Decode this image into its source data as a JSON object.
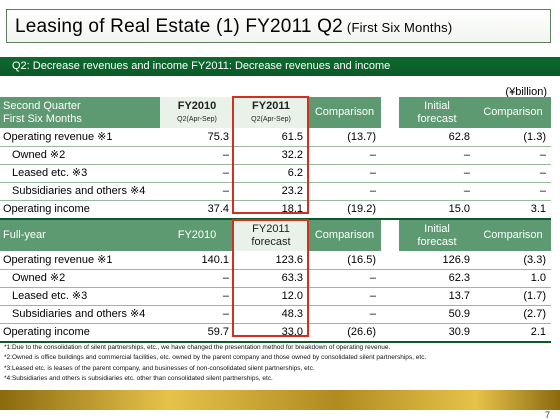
{
  "title": {
    "main": "Leasing of Real Estate (1) FY2011 Q2",
    "sub": "(First Six Months)"
  },
  "subheading": "Q2: Decrease revenues and income  FY2011: Decrease revenues and income",
  "unit": "(¥billion)",
  "q2": {
    "header": {
      "label_line1": "Second Quarter",
      "label_line2": "First Six Months",
      "fy2010": "FY2010",
      "fy2010_period": "Q2(Apr-Sep)",
      "fy2011": "FY2011",
      "fy2011_period": "Q2(Apr-Sep)",
      "comparison": "Comparison",
      "initial_line1": "Initial",
      "initial_line2": "forecast",
      "comparison2": "Comparison"
    },
    "rows": [
      {
        "label": "Operating revenue ※1",
        "fy2010": "75.3",
        "fy2011": "61.5",
        "comparison": "(13.7)",
        "initial": "62.8",
        "comparison2": "(1.3)"
      },
      {
        "label": "Owned ※2",
        "fy2010": "–",
        "fy2011": "32.2",
        "comparison": "–",
        "initial": "–",
        "comparison2": "–"
      },
      {
        "label": "Leased etc. ※3",
        "fy2010": "–",
        "fy2011": "6.2",
        "comparison": "–",
        "initial": "–",
        "comparison2": "–"
      },
      {
        "label": "Subsidiaries and others ※4",
        "fy2010": "–",
        "fy2011": "23.2",
        "comparison": "–",
        "initial": "–",
        "comparison2": "–"
      },
      {
        "label": "Operating income",
        "fy2010": "37.4",
        "fy2011": "18.1",
        "comparison": "(19.2)",
        "initial": "15.0",
        "comparison2": "3.1"
      }
    ]
  },
  "fy": {
    "header": {
      "label": "Full-year",
      "fy2010": "FY2010",
      "fy2011_line1": "FY2011",
      "fy2011_line2": "forecast",
      "comparison": "Comparison",
      "initial_line1": "Initial",
      "initial_line2": "forecast",
      "comparison2": "Comparison"
    },
    "rows": [
      {
        "label": "Operating revenue ※1",
        "fy2010": "140.1",
        "fy2011": "123.6",
        "comparison": "(16.5)",
        "initial": "126.9",
        "comparison2": "(3.3)"
      },
      {
        "label": "Owned ※2",
        "fy2010": "–",
        "fy2011": "63.3",
        "comparison": "–",
        "initial": "62.3",
        "comparison2": "1.0"
      },
      {
        "label": "Leased etc. ※3",
        "fy2010": "–",
        "fy2011": "12.0",
        "comparison": "–",
        "initial": "13.7",
        "comparison2": "(1.7)"
      },
      {
        "label": "Subsidiaries and others ※4",
        "fy2010": "–",
        "fy2011": "48.3",
        "comparison": "–",
        "initial": "50.9",
        "comparison2": "(2.7)"
      },
      {
        "label": "Operating income",
        "fy2010": "59.7",
        "fy2011": "33.0",
        "comparison": "(26.6)",
        "initial": "30.9",
        "comparison2": "2.1"
      }
    ]
  },
  "footnotes": [
    "*1:Due to the consolidation of silent partnerships, etc., we have changed the presentation method for breakdown of operating revenue.",
    "*2:Owned is office buildings and commercial facilities, etc. owned by the parent company and those owned by consolidated silent partnerships, etc.",
    "*3:Leased etc. is leases of the parent company, and businesses of non-consolidated silent partnerships, etc.",
    "*4:Subsidiaries and others is subsidiaries etc. other than consolidated silent partnerships, etc."
  ],
  "page_number": "7"
}
